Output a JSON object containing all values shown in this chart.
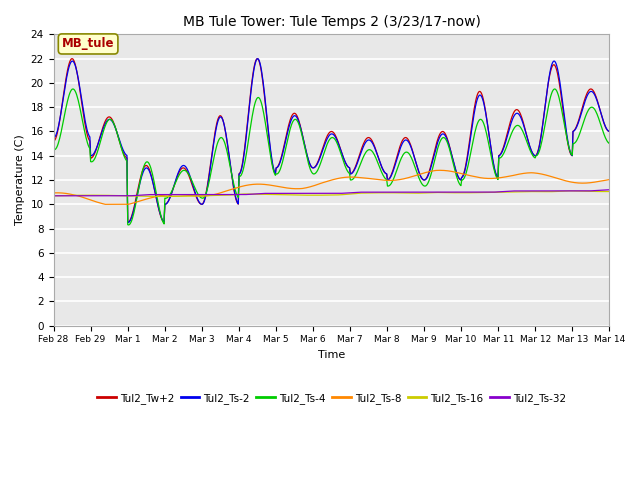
{
  "title": "MB Tule Tower: Tule Temps 2 (3/23/17-now)",
  "xlabel": "Time",
  "ylabel": "Temperature (C)",
  "legend_label": "MB_tule",
  "ylim": [
    0,
    24
  ],
  "yticks": [
    0,
    2,
    4,
    6,
    8,
    10,
    12,
    14,
    16,
    18,
    20,
    22,
    24
  ],
  "bg_color": "#e8e8e8",
  "grid_color": "white",
  "series": [
    {
      "label": "Tul2_Tw+2",
      "color": "#cc0000"
    },
    {
      "label": "Tul2_Ts-2",
      "color": "#0000ee"
    },
    {
      "label": "Tul2_Ts-4",
      "color": "#00cc00"
    },
    {
      "label": "Tul2_Ts-8",
      "color": "#ff8800"
    },
    {
      "label": "Tul2_Ts-16",
      "color": "#cccc00"
    },
    {
      "label": "Tul2_Ts-32",
      "color": "#8800cc"
    }
  ],
  "x_tick_labels": [
    "Feb 28",
    "Feb 29",
    "Mar 1",
    "Mar 2",
    "Mar 3",
    "Mar 4",
    "Mar 5",
    "Mar 6",
    "Mar 7",
    "Mar 8",
    "Mar 9",
    "Mar 10",
    "Mar 11",
    "Mar 12",
    "Mar 13",
    "Mar 14"
  ],
  "num_days": 16,
  "day_peaks_tw2": [
    22.0,
    17.2,
    13.2,
    13.0,
    17.3,
    22.0,
    17.5,
    16.0,
    15.5,
    15.5,
    16.0,
    19.3,
    17.8,
    21.5,
    19.5,
    19.5
  ],
  "day_troughs_tw2": [
    15.2,
    13.8,
    8.5,
    10.0,
    10.0,
    12.5,
    13.0,
    13.0,
    12.5,
    12.0,
    12.0,
    12.2,
    14.0,
    14.0,
    16.0,
    16.0
  ],
  "day_peaks_ts2": [
    21.8,
    17.0,
    13.0,
    13.2,
    17.2,
    22.0,
    17.3,
    15.8,
    15.3,
    15.3,
    15.8,
    19.0,
    17.5,
    21.8,
    19.3,
    19.3
  ],
  "day_troughs_ts2": [
    15.5,
    14.0,
    8.5,
    10.0,
    10.0,
    12.5,
    13.0,
    13.0,
    12.5,
    12.0,
    12.0,
    12.2,
    14.0,
    14.0,
    16.0,
    16.0
  ],
  "day_peaks_ts4": [
    19.5,
    17.0,
    13.5,
    12.8,
    15.5,
    18.8,
    17.0,
    15.5,
    14.5,
    14.3,
    15.5,
    17.0,
    16.5,
    19.5,
    18.0,
    17.0
  ],
  "day_troughs_ts4": [
    14.5,
    13.5,
    8.3,
    10.5,
    10.5,
    12.3,
    12.5,
    12.5,
    12.0,
    11.5,
    11.5,
    12.0,
    13.8,
    14.0,
    15.0,
    15.5
  ],
  "ts8_values": [
    10.8,
    10.5,
    10.3,
    10.2,
    10.2,
    10.3,
    10.5,
    10.8,
    11.0,
    11.2,
    11.3,
    11.4,
    11.5,
    11.6,
    11.8,
    11.9,
    12.0,
    12.2,
    12.3,
    12.4,
    12.5,
    12.5,
    12.5,
    12.4,
    12.3,
    12.3,
    12.2,
    12.1,
    12.0,
    11.9,
    11.8,
    11.8
  ],
  "ts16_values": [
    10.7,
    10.7,
    10.7,
    10.7,
    10.7,
    10.7,
    10.7,
    10.7,
    10.7,
    10.7,
    10.8,
    10.8,
    10.8,
    10.8,
    10.8,
    10.8,
    10.9,
    10.9,
    10.9,
    10.9,
    11.0,
    11.0,
    11.0,
    11.0,
    11.0,
    11.0,
    11.0,
    11.1,
    11.1,
    11.1,
    11.1,
    11.2
  ],
  "ts32_values": [
    10.7,
    10.7,
    10.7,
    10.7,
    10.7,
    10.8,
    10.8,
    10.8,
    10.8,
    10.8,
    10.8,
    10.9,
    10.9,
    10.9,
    10.9,
    10.9,
    11.0,
    11.0,
    11.0,
    11.0,
    11.0,
    11.0,
    11.0,
    11.0,
    11.1,
    11.1,
    11.1,
    11.1,
    11.1,
    11.2,
    11.2,
    11.2
  ]
}
